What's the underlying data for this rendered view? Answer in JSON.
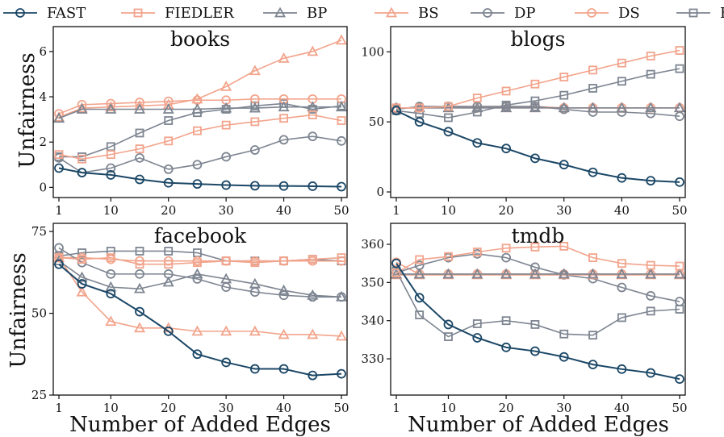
{
  "legend": [
    {
      "name": "Fast",
      "label": "FAST",
      "color": "#1b4766",
      "marker": "circle"
    },
    {
      "name": "Fiedler",
      "label": "FIEDLER",
      "color": "#f2a48c",
      "marker": "square"
    },
    {
      "name": "BP",
      "label": "BP",
      "color": "#7d8591",
      "marker": "triangle"
    },
    {
      "name": "BS",
      "label": "BS",
      "color": "#f2a48c",
      "marker": "triangle"
    },
    {
      "name": "DP",
      "label": "DP",
      "color": "#7d8591",
      "marker": "circle"
    },
    {
      "name": "DS",
      "label": "DS",
      "color": "#f2a48c",
      "marker": "circle"
    },
    {
      "name": "ER",
      "label": "ER",
      "color": "#7d8591",
      "marker": "square"
    }
  ],
  "x_axis_label": "Number of Added Edges",
  "y_axis_label": "Unfairness",
  "chart_data": [
    {
      "type": "line",
      "title": "books",
      "xlabel": "",
      "ylabel": "Unfairness",
      "x": [
        1,
        5,
        10,
        15,
        20,
        25,
        30,
        35,
        40,
        45,
        50
      ],
      "xticks": [
        1,
        10,
        20,
        30,
        40,
        50
      ],
      "yticks": [
        0,
        2,
        4,
        6
      ],
      "ylim": [
        -0.45,
        7.1
      ],
      "series": [
        {
          "name": "Fast",
          "values": [
            0.85,
            0.65,
            0.55,
            0.35,
            0.2,
            0.15,
            0.1,
            0.07,
            0.06,
            0.05,
            0.03
          ]
        },
        {
          "name": "Fiedler",
          "values": [
            1.45,
            1.25,
            1.45,
            1.7,
            2.05,
            2.5,
            2.75,
            2.9,
            3.05,
            3.2,
            2.95
          ]
        },
        {
          "name": "BP",
          "values": [
            3.05,
            3.45,
            3.45,
            3.45,
            3.45,
            3.45,
            3.5,
            3.5,
            3.55,
            3.55,
            3.55
          ]
        },
        {
          "name": "BS",
          "values": [
            3.1,
            3.5,
            3.55,
            3.6,
            3.65,
            3.9,
            4.45,
            5.15,
            5.7,
            6.0,
            6.5
          ]
        },
        {
          "name": "DP",
          "values": [
            1.3,
            0.65,
            0.85,
            1.3,
            0.8,
            1.0,
            1.35,
            1.65,
            2.1,
            2.25,
            2.05
          ]
        },
        {
          "name": "DS",
          "values": [
            3.25,
            3.65,
            3.7,
            3.75,
            3.8,
            3.85,
            3.85,
            3.9,
            3.9,
            3.9,
            3.9
          ]
        },
        {
          "name": "ER",
          "values": [
            1.35,
            1.35,
            1.8,
            2.4,
            2.95,
            3.3,
            3.45,
            3.6,
            3.7,
            3.45,
            3.6
          ]
        }
      ]
    },
    {
      "type": "line",
      "title": "blogs",
      "xlabel": "",
      "ylabel": "",
      "x": [
        1,
        5,
        10,
        15,
        20,
        25,
        30,
        35,
        40,
        45,
        50
      ],
      "xticks": [
        1,
        10,
        20,
        30,
        40,
        50
      ],
      "yticks": [
        0,
        50,
        100
      ],
      "ylim": [
        -4,
        118
      ],
      "series": [
        {
          "name": "Fast",
          "values": [
            58,
            50,
            43,
            35,
            31,
            24,
            19.5,
            14,
            10,
            8,
            7
          ]
        },
        {
          "name": "Fiedler",
          "values": [
            60,
            60,
            61,
            67,
            72,
            77,
            82,
            87,
            92,
            97,
            101
          ]
        },
        {
          "name": "BP",
          "values": [
            60,
            60,
            60,
            60,
            60,
            60,
            60,
            60,
            60,
            60,
            60
          ]
        },
        {
          "name": "BS",
          "values": [
            60,
            60,
            60,
            60,
            60,
            60,
            60,
            60,
            60,
            60,
            60
          ]
        },
        {
          "name": "DP",
          "values": [
            59,
            61,
            61,
            61,
            61,
            61,
            59,
            57,
            57,
            56,
            54
          ]
        },
        {
          "name": "DS",
          "values": [
            60,
            60,
            61,
            61,
            61,
            61,
            60,
            60,
            60,
            60,
            60
          ]
        },
        {
          "name": "ER",
          "values": [
            58,
            56,
            53,
            57,
            62,
            65,
            69,
            74,
            79,
            84,
            88
          ]
        }
      ]
    },
    {
      "type": "line",
      "title": "facebook",
      "xlabel": "Number of Added Edges",
      "ylabel": "Unfairness",
      "x": [
        1,
        5,
        10,
        15,
        20,
        25,
        30,
        35,
        40,
        45,
        50
      ],
      "xticks": [
        1,
        10,
        20,
        30,
        40,
        50
      ],
      "yticks": [
        25,
        50,
        75
      ],
      "ylim": [
        25,
        77.5
      ],
      "series": [
        {
          "name": "Fast",
          "values": [
            65,
            59,
            56,
            50.5,
            44.5,
            37.5,
            35,
            33,
            33,
            31,
            31.5
          ]
        },
        {
          "name": "Fiedler",
          "values": [
            67,
            66.5,
            67,
            65,
            65,
            65.5,
            66,
            65.5,
            66,
            66.5,
            67
          ]
        },
        {
          "name": "BP",
          "values": [
            66,
            61,
            58,
            57.5,
            59.5,
            62,
            60.5,
            59,
            57,
            55.5,
            55
          ]
        },
        {
          "name": "BS",
          "values": [
            67,
            56.5,
            47.5,
            45.5,
            45.5,
            44.5,
            44.5,
            44.5,
            43.5,
            43.5,
            43
          ]
        },
        {
          "name": "DP",
          "values": [
            70,
            65.5,
            62,
            62,
            62,
            60.5,
            58,
            56.5,
            55.5,
            55,
            55
          ]
        },
        {
          "name": "DS",
          "values": [
            67,
            67,
            66.5,
            66,
            66,
            66,
            66,
            66,
            66,
            66,
            66
          ]
        },
        {
          "name": "ER",
          "values": [
            67.5,
            68.5,
            69,
            69,
            69,
            68.5,
            66,
            66,
            66,
            66.5,
            66
          ]
        }
      ]
    },
    {
      "type": "line",
      "title": "tmdb",
      "xlabel": "Number of Added Edges",
      "ylabel": "",
      "x": [
        1,
        5,
        10,
        15,
        20,
        25,
        30,
        35,
        40,
        45,
        50
      ],
      "xticks": [
        1,
        10,
        20,
        30,
        40,
        50
      ],
      "yticks": [
        330,
        340,
        350,
        360
      ],
      "ylim": [
        320.5,
        365.5
      ],
      "series": [
        {
          "name": "Fast",
          "values": [
            355,
            346,
            339,
            335.5,
            333,
            332,
            330.5,
            328.5,
            327.3,
            326.3,
            324.7
          ]
        },
        {
          "name": "Fiedler",
          "values": [
            352.5,
            356,
            356.8,
            358,
            359,
            359.3,
            359.5,
            356.5,
            355,
            354.5,
            354.3
          ]
        },
        {
          "name": "BP",
          "values": [
            352.2,
            352.2,
            352.2,
            352.2,
            352.2,
            352.2,
            352.2,
            352.2,
            352.2,
            352.2,
            352.2
          ]
        },
        {
          "name": "BS",
          "values": [
            352,
            352,
            352,
            352,
            352,
            352,
            352,
            352,
            352,
            352,
            352
          ]
        },
        {
          "name": "DP",
          "values": [
            352.5,
            354.5,
            356.5,
            357.5,
            356.5,
            354,
            352,
            351,
            348.7,
            346.5,
            345
          ]
        },
        {
          "name": "DS",
          "values": [
            355.3,
            352.2,
            352.2,
            352.2,
            352.2,
            352.2,
            352.2,
            352.2,
            352.2,
            352.2,
            352.2
          ]
        },
        {
          "name": "ER",
          "values": [
            353,
            341.5,
            335.8,
            339.2,
            340,
            339,
            336.5,
            336.2,
            340.8,
            342.5,
            343
          ]
        }
      ]
    }
  ]
}
